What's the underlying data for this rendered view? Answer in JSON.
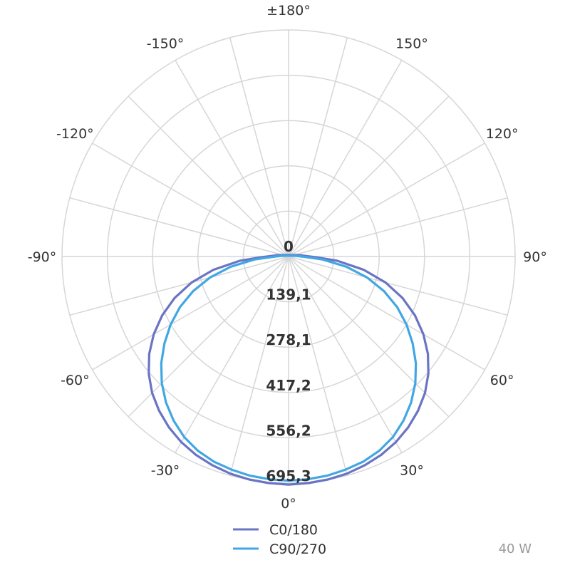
{
  "chart_data": {
    "type": "polar",
    "angle_labels": [
      "0°",
      "30°",
      "60°",
      "90°",
      "120°",
      "150°",
      "±180°",
      "-150°",
      "-120°",
      "-90°",
      "-60°",
      "-30°"
    ],
    "radial_labels": [
      "0",
      "139,1",
      "278,1",
      "417,2",
      "556,2",
      "695,3"
    ],
    "radial_range": [
      0,
      695.3
    ],
    "angle_gridline_step_deg": 15,
    "series": [
      {
        "name": "C0/180",
        "color": "#6a74c4",
        "points": [
          [
            0,
            700
          ],
          [
            5,
            698
          ],
          [
            10,
            695
          ],
          [
            15,
            690
          ],
          [
            20,
            682
          ],
          [
            25,
            672
          ],
          [
            30,
            658
          ],
          [
            35,
            640
          ],
          [
            40,
            618
          ],
          [
            45,
            592
          ],
          [
            50,
            560
          ],
          [
            55,
            522
          ],
          [
            60,
            478
          ],
          [
            65,
            428
          ],
          [
            70,
            372
          ],
          [
            75,
            308
          ],
          [
            80,
            234
          ],
          [
            85,
            150
          ],
          [
            88,
            90
          ],
          [
            90,
            65
          ],
          [
            95,
            40
          ],
          [
            100,
            25
          ],
          [
            -100,
            25
          ],
          [
            -95,
            40
          ],
          [
            -90,
            65
          ],
          [
            -88,
            90
          ],
          [
            -85,
            150
          ],
          [
            -80,
            234
          ],
          [
            -75,
            308
          ],
          [
            -70,
            372
          ],
          [
            -65,
            428
          ],
          [
            -60,
            478
          ],
          [
            -55,
            522
          ],
          [
            -50,
            560
          ],
          [
            -45,
            592
          ],
          [
            -40,
            618
          ],
          [
            -35,
            640
          ],
          [
            -30,
            658
          ],
          [
            -25,
            672
          ],
          [
            -20,
            682
          ],
          [
            -15,
            690
          ],
          [
            -10,
            695
          ],
          [
            -5,
            698
          ]
        ]
      },
      {
        "name": "C90/270",
        "color": "#41a7e3",
        "points": [
          [
            0,
            688
          ],
          [
            5,
            686
          ],
          [
            10,
            683
          ],
          [
            15,
            677
          ],
          [
            20,
            670
          ],
          [
            25,
            658
          ],
          [
            30,
            640
          ],
          [
            35,
            615
          ],
          [
            40,
            585
          ],
          [
            45,
            550
          ],
          [
            50,
            510
          ],
          [
            55,
            465
          ],
          [
            60,
            418
          ],
          [
            65,
            368
          ],
          [
            70,
            312
          ],
          [
            75,
            250
          ],
          [
            80,
            180
          ],
          [
            85,
            105
          ],
          [
            88,
            55
          ],
          [
            90,
            40
          ],
          [
            95,
            22
          ],
          [
            100,
            12
          ],
          [
            -100,
            12
          ],
          [
            -95,
            22
          ],
          [
            -90,
            40
          ],
          [
            -88,
            55
          ],
          [
            -85,
            105
          ],
          [
            -80,
            180
          ],
          [
            -75,
            250
          ],
          [
            -70,
            312
          ],
          [
            -65,
            368
          ],
          [
            -60,
            418
          ],
          [
            -55,
            465
          ],
          [
            -50,
            510
          ],
          [
            -45,
            550
          ],
          [
            -40,
            585
          ],
          [
            -35,
            615
          ],
          [
            -30,
            640
          ],
          [
            -25,
            658
          ],
          [
            -20,
            670
          ],
          [
            -15,
            677
          ],
          [
            -10,
            683
          ],
          [
            -5,
            686
          ]
        ]
      }
    ],
    "legend": {
      "placement": "bottom-center"
    },
    "note": "40 W"
  }
}
